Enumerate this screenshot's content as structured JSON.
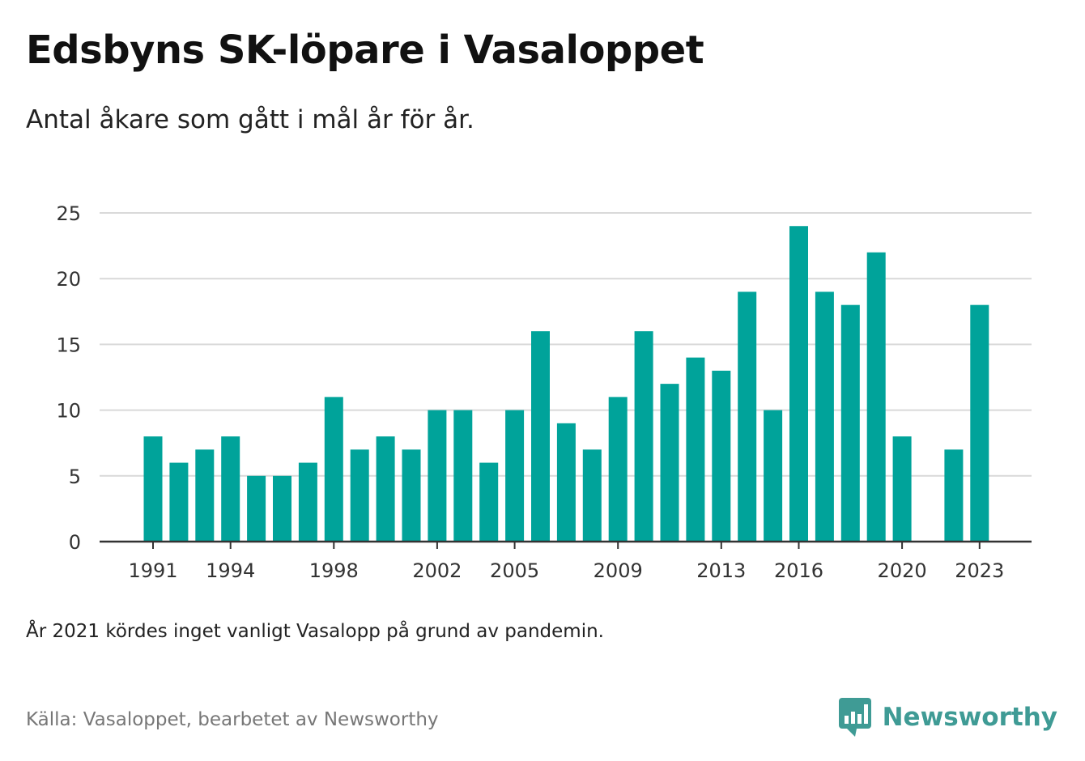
{
  "title": "Edsbyns SK-löpare i Vasaloppet",
  "subtitle": "Antal åkare som gått i mål år för år.",
  "note": "År 2021 kördes inget vanligt Vasalopp på grund av pandemin.",
  "source": "Källa: Vasaloppet, bearbetet av Newsworthy",
  "brand": {
    "name": "Newsworthy",
    "logo_icon": "newsworthy-logo-icon"
  },
  "colors": {
    "bar": "#00a39a",
    "grid": "#d9d9d9",
    "axis": "#333333",
    "brand": "#3f9b95"
  },
  "chart_data": {
    "type": "bar",
    "title": "Edsbyns SK-löpare i Vasaloppet",
    "subtitle": "Antal åkare som gått i mål år för år.",
    "xlabel": "",
    "ylabel": "",
    "ylim": [
      0,
      25
    ],
    "yticks": [
      0,
      5,
      10,
      15,
      20,
      25
    ],
    "xtick_labels": [
      "1991",
      "1994",
      "1998",
      "2002",
      "2005",
      "2009",
      "2013",
      "2016",
      "2020",
      "2023"
    ],
    "grid": true,
    "categories": [
      "1991",
      "1992",
      "1993",
      "1994",
      "1995",
      "1996",
      "1997",
      "1998",
      "1999",
      "2000",
      "2001",
      "2002",
      "2003",
      "2004",
      "2005",
      "2006",
      "2007",
      "2008",
      "2009",
      "2010",
      "2011",
      "2012",
      "2013",
      "2014",
      "2015",
      "2016",
      "2017",
      "2018",
      "2019",
      "2020",
      "2021",
      "2022",
      "2023"
    ],
    "values": [
      8,
      6,
      7,
      8,
      5,
      5,
      6,
      11,
      7,
      8,
      7,
      10,
      10,
      6,
      10,
      16,
      9,
      7,
      11,
      16,
      12,
      14,
      13,
      19,
      10,
      24,
      19,
      18,
      22,
      8,
      null,
      7,
      18
    ]
  }
}
